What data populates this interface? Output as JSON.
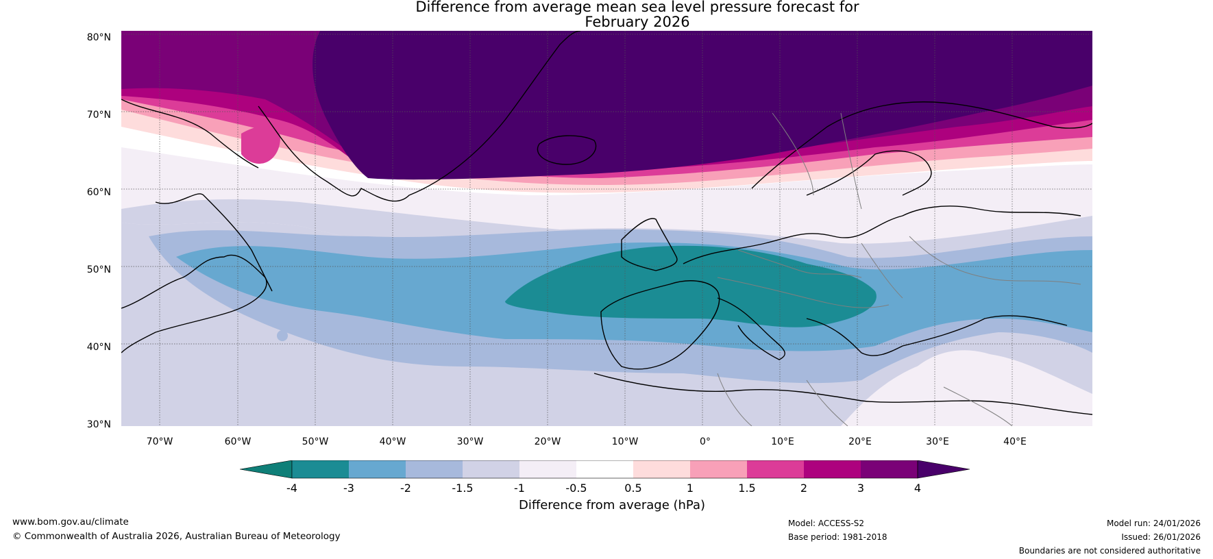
{
  "title": {
    "line1": "Difference from average mean sea level pressure forecast for",
    "line2": "February 2026"
  },
  "latitude_labels": [
    "80°N",
    "70°N",
    "60°N",
    "50°N",
    "40°N",
    "30°N"
  ],
  "longitude_labels": [
    "70°W",
    "60°W",
    "50°W",
    "40°W",
    "30°W",
    "20°W",
    "10°W",
    "0°",
    "10°E",
    "20°E",
    "30°E",
    "40°E"
  ],
  "map_layers": {
    "coastlines": "black-coastlines",
    "borders": "grey-borders",
    "gridlines": "dotted-graticule"
  },
  "colorbar": {
    "ticks": [
      "-4",
      "-3",
      "-2",
      "-1.5",
      "-1",
      "-0.5",
      "0.5",
      "1",
      "1.5",
      "2",
      "3",
      "4"
    ],
    "colors": [
      "#0f7f78",
      "#1b8c94",
      "#67a8d0",
      "#a7b9dc",
      "#d1d2e6",
      "#f4eef6",
      "#ffffff",
      "#fedcdc",
      "#f8a0b8",
      "#dc3c98",
      "#ad017e",
      "#7a0177",
      "#49006a"
    ],
    "label": "Difference from average (hPa)"
  },
  "footer": {
    "website": "www.bom.gov.au/climate",
    "copyright": "© Commonwealth of Australia 2026, Australian Bureau of Meteorology",
    "model": "Model: ACCESS-S2",
    "base_period": "Base period: 1981-2018",
    "model_run": "Model run: 24/01/2026",
    "issued": "Issued: 26/01/2026",
    "disclaimer": "Boundaries are not considered authoritative"
  }
}
